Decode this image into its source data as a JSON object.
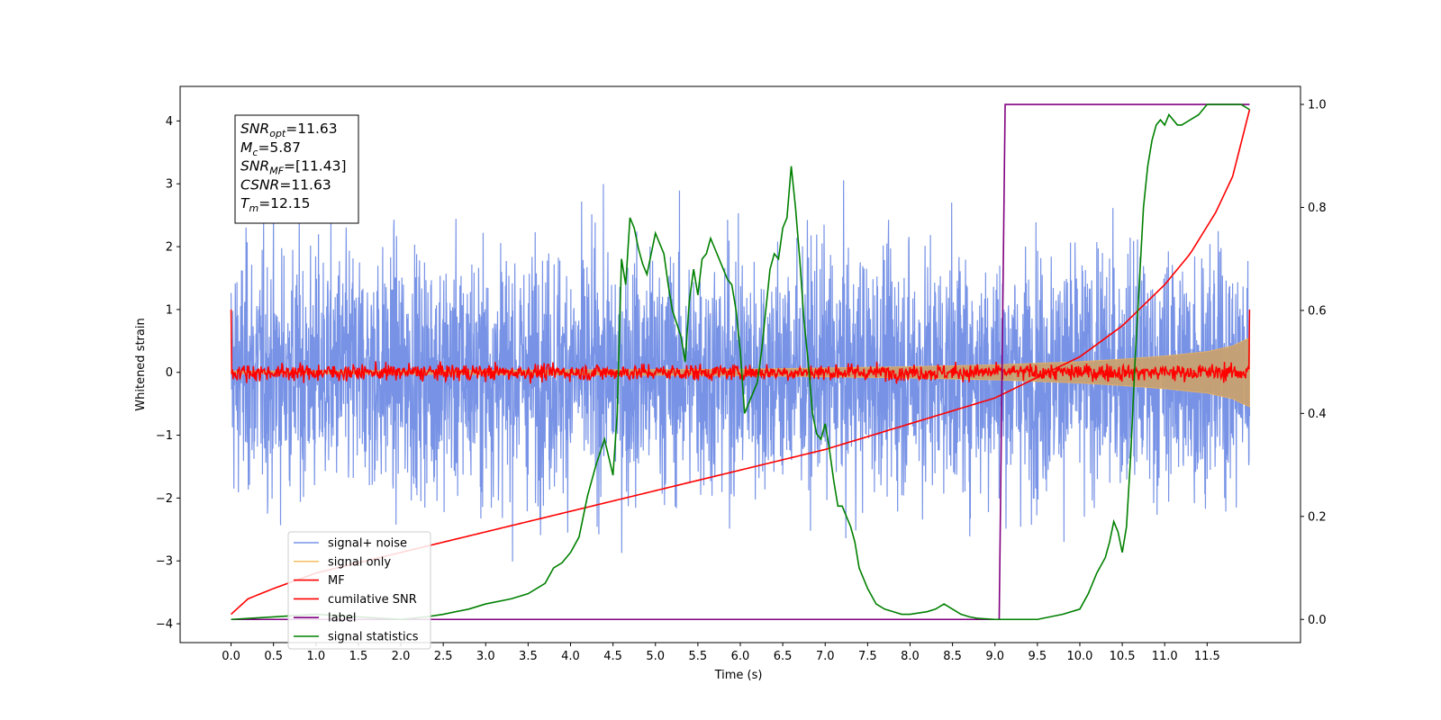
{
  "chart_data": {
    "type": "line",
    "xlabel": "Time (s)",
    "ylabel": "Whitened strain",
    "xlim": [
      -0.6,
      12.6
    ],
    "ylim": [
      -4.3,
      4.55
    ],
    "y2lim": [
      -0.045,
      1.035
    ],
    "x_ticks": [
      "0.0",
      "0.5",
      "1.0",
      "1.5",
      "2.0",
      "2.5",
      "3.0",
      "3.5",
      "4.0",
      "4.5",
      "5.0",
      "5.5",
      "6.0",
      "6.5",
      "7.0",
      "7.5",
      "8.0",
      "8.5",
      "9.0",
      "9.5",
      "10.0",
      "10.5",
      "11.0",
      "11.5"
    ],
    "y_ticks": [
      "4",
      "3",
      "2",
      "1",
      "0",
      "−1",
      "−2",
      "−3",
      "−4"
    ],
    "y2_ticks": [
      "1.0",
      "0.8",
      "0.6",
      "0.4",
      "0.2",
      "0.0"
    ],
    "stats_box": [
      {
        "sym": "SNR",
        "sub": "opt",
        "value": "=11.63"
      },
      {
        "sym": "M",
        "sub": "c",
        "value": "=5.87"
      },
      {
        "sym": "SNR",
        "sub": "MF",
        "value": "=[11.43]"
      },
      {
        "sym": "CSNR",
        "sub": "",
        "value": "=11.63"
      },
      {
        "sym": "T",
        "sub": "m",
        "value": "=12.15"
      }
    ],
    "legend": {
      "placement": "lower-left",
      "entries": [
        {
          "label": "signal+ noise",
          "color": "#7893e6"
        },
        {
          "label": "signal only",
          "color": "#f5c26b"
        },
        {
          "label": "MF",
          "color": "#ff0000"
        },
        {
          "label": "cumilative SNR",
          "color": "#ff0000"
        },
        {
          "label": "label",
          "color": "#800080"
        },
        {
          "label": "signal statistics",
          "color": "#008000"
        }
      ]
    },
    "series": [
      {
        "name": "signal+ noise",
        "axis": "left",
        "color": "#7893e6",
        "description_amplitude": [
          -3.9,
          4.15
        ]
      },
      {
        "name": "signal only",
        "axis": "left",
        "color": "#c8a070",
        "envelope_x": [
          0,
          2,
          4,
          6,
          7,
          8,
          9,
          10,
          10.5,
          11,
          11.5,
          11.8,
          12.0
        ],
        "envelope_y": [
          0.02,
          0.03,
          0.04,
          0.05,
          0.07,
          0.09,
          0.12,
          0.17,
          0.21,
          0.26,
          0.33,
          0.42,
          0.55
        ]
      },
      {
        "name": "MF",
        "axis": "left",
        "color": "#ff0000",
        "level": 0.0,
        "spread": 0.12
      },
      {
        "name": "cumilative SNR",
        "axis": "right",
        "color": "#ff0000",
        "x": [
          0.0,
          0.2,
          0.5,
          1.0,
          2.0,
          3.0,
          4.0,
          5.0,
          6.0,
          7.0,
          8.0,
          9.0,
          9.5,
          10.0,
          10.5,
          11.0,
          11.3,
          11.6,
          11.8,
          12.0
        ],
        "y": [
          0.01,
          0.04,
          0.06,
          0.09,
          0.13,
          0.17,
          0.21,
          0.25,
          0.29,
          0.33,
          0.38,
          0.43,
          0.47,
          0.51,
          0.57,
          0.65,
          0.71,
          0.79,
          0.86,
          0.99
        ]
      },
      {
        "name": "label",
        "axis": "right",
        "color": "#800080",
        "x": [
          0.0,
          9.05,
          9.12,
          12.0
        ],
        "y": [
          0.0,
          0.0,
          1.0,
          1.0
        ]
      },
      {
        "name": "signal statistics",
        "axis": "right",
        "color": "#008000",
        "x": [
          0.0,
          0.5,
          1.0,
          1.5,
          2.0,
          2.3,
          2.5,
          2.8,
          3.0,
          3.3,
          3.5,
          3.7,
          3.8,
          3.9,
          4.0,
          4.1,
          4.2,
          4.3,
          4.4,
          4.5,
          4.55,
          4.6,
          4.65,
          4.7,
          4.75,
          4.8,
          4.85,
          4.9,
          4.95,
          5.0,
          5.05,
          5.1,
          5.15,
          5.2,
          5.3,
          5.35,
          5.4,
          5.45,
          5.5,
          5.55,
          5.6,
          5.65,
          5.7,
          5.75,
          5.8,
          5.85,
          5.9,
          5.95,
          6.0,
          6.05,
          6.1,
          6.15,
          6.2,
          6.25,
          6.3,
          6.35,
          6.4,
          6.45,
          6.5,
          6.55,
          6.6,
          6.65,
          6.7,
          6.75,
          6.8,
          6.85,
          6.9,
          6.95,
          7.0,
          7.05,
          7.1,
          7.15,
          7.2,
          7.25,
          7.3,
          7.35,
          7.4,
          7.5,
          7.6,
          7.7,
          7.8,
          7.9,
          8.0,
          8.2,
          8.3,
          8.4,
          8.5,
          8.6,
          8.7,
          8.8,
          9.0,
          9.2,
          9.5,
          9.8,
          10.0,
          10.1,
          10.2,
          10.3,
          10.35,
          10.4,
          10.45,
          10.5,
          10.55,
          10.6,
          10.65,
          10.7,
          10.75,
          10.8,
          10.85,
          10.9,
          10.95,
          11.0,
          11.05,
          11.1,
          11.15,
          11.2,
          11.3,
          11.4,
          11.5,
          11.6,
          11.7,
          11.8,
          11.9,
          12.0
        ],
        "y": [
          0.0,
          0.005,
          0.01,
          0.005,
          0.0,
          0.005,
          0.01,
          0.02,
          0.03,
          0.04,
          0.05,
          0.07,
          0.1,
          0.11,
          0.13,
          0.16,
          0.24,
          0.3,
          0.35,
          0.28,
          0.4,
          0.7,
          0.65,
          0.78,
          0.76,
          0.72,
          0.69,
          0.67,
          0.71,
          0.75,
          0.73,
          0.71,
          0.65,
          0.6,
          0.55,
          0.5,
          0.62,
          0.68,
          0.63,
          0.7,
          0.71,
          0.74,
          0.72,
          0.7,
          0.68,
          0.66,
          0.65,
          0.6,
          0.52,
          0.4,
          0.42,
          0.44,
          0.46,
          0.52,
          0.6,
          0.68,
          0.71,
          0.7,
          0.76,
          0.78,
          0.88,
          0.8,
          0.7,
          0.58,
          0.5,
          0.4,
          0.36,
          0.35,
          0.38,
          0.33,
          0.27,
          0.22,
          0.22,
          0.2,
          0.18,
          0.15,
          0.1,
          0.06,
          0.03,
          0.02,
          0.015,
          0.01,
          0.01,
          0.015,
          0.02,
          0.03,
          0.02,
          0.01,
          0.005,
          0.002,
          0.0,
          0.0,
          0.0,
          0.01,
          0.02,
          0.05,
          0.09,
          0.12,
          0.15,
          0.19,
          0.17,
          0.13,
          0.18,
          0.32,
          0.5,
          0.65,
          0.8,
          0.88,
          0.93,
          0.96,
          0.97,
          0.96,
          0.98,
          0.97,
          0.96,
          0.96,
          0.97,
          0.98,
          1.0,
          1.0,
          1.0,
          1.0,
          1.0,
          0.99
        ]
      }
    ]
  }
}
